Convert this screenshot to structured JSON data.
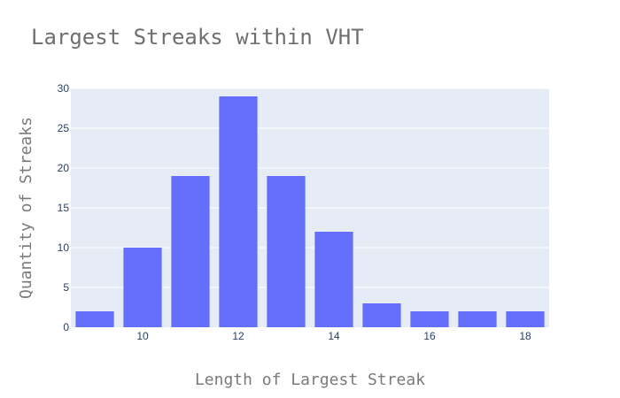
{
  "chart_data": {
    "type": "bar",
    "title": "Largest Streaks within VHT",
    "xlabel": "Length of Largest Streak",
    "ylabel": "Quantity of Streaks",
    "x": [
      9,
      10,
      11,
      12,
      13,
      14,
      15,
      16,
      17,
      18
    ],
    "values": [
      2,
      10,
      19,
      29,
      19,
      12,
      3,
      2,
      2,
      2
    ],
    "xlim": [
      8.5,
      18.5
    ],
    "ylim": [
      0,
      30
    ],
    "xticks": [
      10,
      12,
      14,
      16,
      18
    ],
    "yticks": [
      0,
      5,
      10,
      15,
      20,
      25,
      30
    ],
    "grid": true,
    "legend": "none",
    "colors": {
      "bar": "#636efa",
      "plot_background": "#e5ecf6",
      "gridline": "#ffffff",
      "title": "#6f6f6f",
      "axis_title": "#7a7a7a",
      "tick": "#2a3f5f"
    }
  }
}
